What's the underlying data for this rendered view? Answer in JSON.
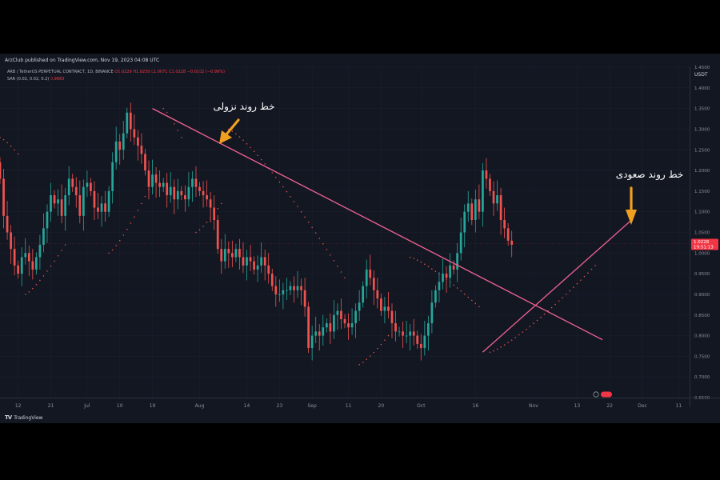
{
  "publisher": "ArzClub published on TradingView.com, Nov 19, 2023 04:08 UTC",
  "brand": "TradingView",
  "symbol_line": {
    "name": "ARB / TetherUS PERPETUAL CONTRACT, 1D, BINANCE",
    "o": "O1.0229",
    "h": "H1.0230",
    "l": "L1.0071",
    "c": "C1.0228",
    "change": "−0.0102 (−0.99%)"
  },
  "indicator_line": {
    "name": "SAR (0.02, 0.02, 0.2)",
    "value": "0.9683"
  },
  "colors": {
    "background": "#131722",
    "up": "#26a69a",
    "down": "#ef5350",
    "trendline": "#f06292",
    "arrow": "#f0a020",
    "price_tag": "#f23645"
  },
  "chart_data": {
    "type": "candlestick",
    "currency": "USDT",
    "ylim": [
      0.65,
      1.45
    ],
    "y_ticks": [
      0.65,
      0.7,
      0.75,
      0.8,
      0.85,
      0.9,
      0.95,
      1.0,
      1.05,
      1.1,
      1.15,
      1.2,
      1.25,
      1.3,
      1.35,
      1.4,
      1.45
    ],
    "y_tick_labels": [
      "0.6500",
      "0.7000",
      "0.7500",
      "0.8000",
      "0.8500",
      "0.9000",
      "0.9500",
      "1.0000",
      "1.0500",
      "1.1000",
      "1.1500",
      "1.2000",
      "1.2500",
      "1.3000",
      "1.3500",
      "1.4000",
      "1.4500"
    ],
    "x_start": "2023-06-07",
    "x_end": "2023-12-14",
    "x_ticks": [
      {
        "date": "2023-06-12",
        "label": "12"
      },
      {
        "date": "2023-06-21",
        "label": "21"
      },
      {
        "date": "2023-07-01",
        "label": "Jul"
      },
      {
        "date": "2023-07-10",
        "label": "10"
      },
      {
        "date": "2023-07-19",
        "label": "19"
      },
      {
        "date": "2023-08-01",
        "label": "Aug"
      },
      {
        "date": "2023-08-14",
        "label": "14"
      },
      {
        "date": "2023-08-23",
        "label": "23"
      },
      {
        "date": "2023-09-01",
        "label": "Sep"
      },
      {
        "date": "2023-09-11",
        "label": "11"
      },
      {
        "date": "2023-09-20",
        "label": "20"
      },
      {
        "date": "2023-10-01",
        "label": "Oct"
      },
      {
        "date": "2023-10-16",
        "label": "16"
      },
      {
        "date": "2023-11-01",
        "label": "Nov"
      },
      {
        "date": "2023-11-13",
        "label": "13"
      },
      {
        "date": "2023-11-22",
        "label": "22"
      },
      {
        "date": "2023-12-01",
        "label": "Dec"
      },
      {
        "date": "2023-12-11",
        "label": "11"
      }
    ],
    "first_candle_date": "2023-06-07",
    "closes": [
      1.18,
      1.09,
      1.05,
      1.01,
      0.97,
      0.95,
      0.99,
      1.0,
      0.98,
      0.96,
      0.99,
      1.02,
      1.06,
      1.1,
      1.14,
      1.12,
      1.13,
      1.09,
      1.14,
      1.18,
      1.16,
      1.14,
      1.09,
      1.16,
      1.17,
      1.15,
      1.11,
      1.1,
      1.12,
      1.1,
      1.15,
      1.22,
      1.27,
      1.25,
      1.29,
      1.34,
      1.3,
      1.28,
      1.26,
      1.24,
      1.2,
      1.16,
      1.19,
      1.17,
      1.16,
      1.17,
      1.14,
      1.16,
      1.13,
      1.15,
      1.14,
      1.13,
      1.16,
      1.18,
      1.16,
      1.15,
      1.14,
      1.13,
      1.11,
      1.08,
      1.01,
      0.98,
      1.01,
      1.0,
      0.99,
      1.01,
      0.99,
      0.97,
      0.99,
      0.98,
      0.96,
      0.97,
      0.99,
      0.97,
      0.95,
      0.92,
      0.9,
      0.9,
      0.91,
      0.91,
      0.92,
      0.91,
      0.92,
      0.91,
      0.87,
      0.77,
      0.8,
      0.81,
      0.8,
      0.82,
      0.83,
      0.81,
      0.85,
      0.86,
      0.84,
      0.83,
      0.82,
      0.83,
      0.86,
      0.88,
      0.92,
      0.96,
      0.94,
      0.91,
      0.89,
      0.86,
      0.87,
      0.86,
      0.83,
      0.81,
      0.81,
      0.8,
      0.8,
      0.81,
      0.8,
      0.78,
      0.77,
      0.8,
      0.83,
      0.88,
      0.91,
      0.93,
      0.95,
      0.94,
      0.97,
      0.96,
      1.0,
      1.05,
      1.1,
      1.12,
      1.08,
      1.13,
      1.1,
      1.2,
      1.18,
      1.15,
      1.12,
      1.14,
      1.08,
      1.06,
      1.03,
      1.02
    ],
    "sar_ranges": [
      {
        "from_date": "2023-06-07",
        "from": 1.28,
        "to_date": "2023-06-12",
        "to": 1.24
      },
      {
        "from_date": "2023-06-14",
        "from": 0.9,
        "to_date": "2023-06-25",
        "to": 1.02
      },
      {
        "from_date": "2023-07-07",
        "from": 1.0,
        "to_date": "2023-07-20",
        "to": 1.19
      },
      {
        "from_date": "2023-07-22",
        "from": 1.35,
        "to_date": "2023-07-27",
        "to": 1.28
      },
      {
        "from_date": "2023-07-31",
        "from": 1.05,
        "to_date": "2023-08-07",
        "to": 1.12
      },
      {
        "from_date": "2023-08-09",
        "from": 1.3,
        "to_date": "2023-09-10",
        "to": 0.94
      },
      {
        "from_date": "2023-09-14",
        "from": 0.73,
        "to_date": "2023-09-22",
        "to": 0.8
      },
      {
        "from_date": "2023-09-28",
        "from": 0.99,
        "to_date": "2023-10-17",
        "to": 0.87
      },
      {
        "from_date": "2023-10-20",
        "from": 0.76,
        "to_date": "2023-11-18",
        "to": 0.97
      }
    ],
    "trendlines": [
      {
        "name": "downtrend",
        "from_date": "2023-07-19",
        "from": 1.35,
        "to_date": "2023-11-20",
        "to": 0.79
      },
      {
        "name": "uptrend",
        "from_date": "2023-10-18",
        "from": 0.76,
        "to_date": "2023-11-28",
        "to": 1.08
      }
    ],
    "last_price": "1.0228",
    "countdown": "19:51:13",
    "annotations": [
      {
        "text": "خط روند نزولی",
        "arrow": "down-left"
      },
      {
        "text": "خط روند صعودی",
        "arrow": "down"
      }
    ],
    "logo": "TV"
  }
}
